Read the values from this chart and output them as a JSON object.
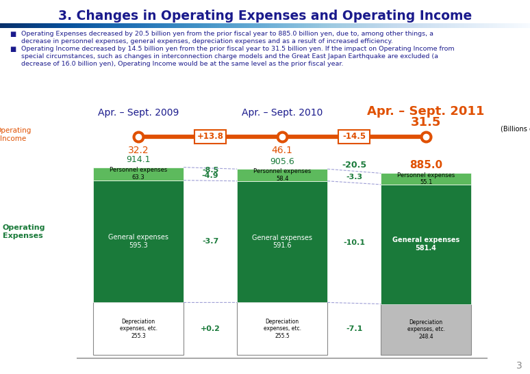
{
  "title": "3. Changes in Operating Expenses and Operating Income",
  "title_color": "#1a1a8c",
  "bullet1": "Operating Expenses decreased by 20.5 billion yen from the prior fiscal year to 885.0 billion yen, due to, among other things, a decrease in personnel expenses, general expenses, depreciation expenses and as a result of increased efficiency.",
  "bullet2_line1": "Operating Income decreased by 14.5 billion yen from the prior fiscal year to 31.5 billion yen. If the impact on Operating Income from",
  "bullet2_line2": "special circumstances, such as changes in interconnection charge models and the Great East Japan Earthquake are excluded (a",
  "bullet2_line3": "decrease of 16.0 billion yen), Operating Income would be at the same level as the prior fiscal year.",
  "years": [
    "Apr. – Sept. 2009",
    "Apr. – Sept. 2010",
    "Apr. – Sept. 2011"
  ],
  "year_colors": [
    "#1a1a8c",
    "#1a1a8c",
    "#e05000"
  ],
  "year_bold": [
    false,
    false,
    true
  ],
  "year_fontsize": [
    10,
    10,
    13
  ],
  "operating_income": [
    32.2,
    46.1,
    31.5
  ],
  "income_changes": [
    "+13.8",
    "-14.5"
  ],
  "total_expenses": [
    914.1,
    905.6,
    885.0
  ],
  "personnel": [
    63.3,
    58.4,
    55.1
  ],
  "general": [
    595.3,
    591.6,
    581.4
  ],
  "depreciation": [
    255.3,
    255.5,
    248.4
  ],
  "per_change_top": [
    "-8.5",
    "-3.3"
  ],
  "per_change_bot": [
    "-4.9",
    ""
  ],
  "gen_changes": [
    "-3.7",
    "-10.1"
  ],
  "dep_changes": [
    "+0.2",
    "-7.1"
  ],
  "total_change_2": "-20.5",
  "color_dark_green": "#1a7a3a",
  "color_light_green": "#5dba5d",
  "color_orange": "#e05000",
  "color_blue": "#1a1a8c",
  "color_gray_dep": "#bbbbbb",
  "background_color": "#ffffff"
}
